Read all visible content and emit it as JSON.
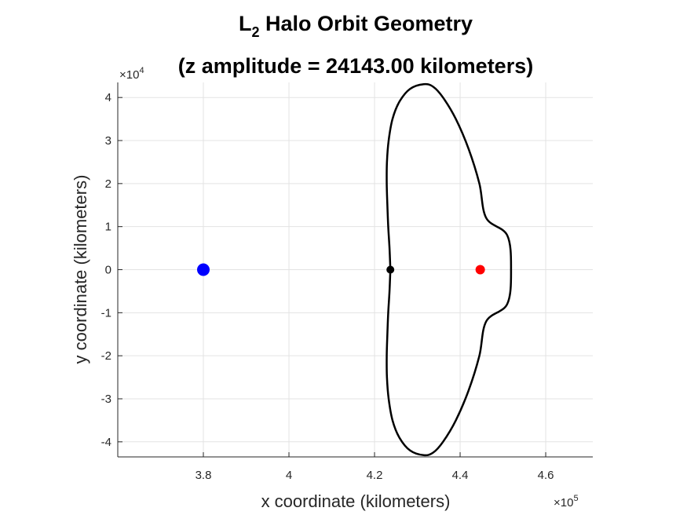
{
  "chart_data": {
    "type": "scatter",
    "title_line1_main": "L",
    "title_line1_sub": "2",
    "title_line1_rest": " Halo Orbit Geometry",
    "title_line2": "(z amplitude = 24143.00 kilometers)",
    "xlabel": "x coordinate (kilometers)",
    "ylabel": "y coordinate (kilometers)",
    "x_exponent_label": "×10",
    "x_exponent_power": "5",
    "y_exponent_label": "×10",
    "y_exponent_power": "4",
    "xlim": [
      3.6,
      4.71
    ],
    "ylim": [
      -4.35,
      4.35
    ],
    "x_ticks": [
      3.8,
      4.0,
      4.2,
      4.4,
      4.6
    ],
    "x_tick_labels": [
      "3.8",
      "4",
      "4.2",
      "4.4",
      "4.6"
    ],
    "y_ticks": [
      -4,
      -3,
      -2,
      -1,
      0,
      1,
      2,
      3,
      4
    ],
    "y_tick_labels": [
      "-4",
      "-3",
      "-2",
      "-1",
      "0",
      "1",
      "2",
      "3",
      "4"
    ],
    "grid": true,
    "points": [
      {
        "x": 3.8,
        "y": 0,
        "color": "#0000ff",
        "size": "large"
      },
      {
        "x": 4.237,
        "y": 0,
        "color": "#000000",
        "size": "small"
      },
      {
        "x": 4.447,
        "y": 0,
        "color": "#ff0000",
        "size": "medium"
      }
    ],
    "orbit_curve": {
      "color": "#000000",
      "points": [
        [
          4.237,
          0
        ],
        [
          4.235,
          0.5
        ],
        [
          4.232,
          1.0
        ],
        [
          4.23,
          1.5
        ],
        [
          4.2285,
          2.0
        ],
        [
          4.229,
          2.5
        ],
        [
          4.233,
          3.0
        ],
        [
          4.242,
          3.5
        ],
        [
          4.258,
          3.9
        ],
        [
          4.283,
          4.2
        ],
        [
          4.315,
          4.31
        ],
        [
          4.337,
          4.25
        ],
        [
          4.36,
          4.0
        ],
        [
          4.39,
          3.5
        ],
        [
          4.42,
          2.8
        ],
        [
          4.445,
          2.0
        ],
        [
          4.461,
          1.2
        ],
        [
          4.51,
          0.8
        ],
        [
          4.519,
          0
        ],
        [
          4.51,
          -0.8
        ],
        [
          4.461,
          -1.2
        ],
        [
          4.445,
          -2.0
        ],
        [
          4.42,
          -2.8
        ],
        [
          4.39,
          -3.5
        ],
        [
          4.36,
          -4.0
        ],
        [
          4.337,
          -4.25
        ],
        [
          4.315,
          -4.31
        ],
        [
          4.283,
          -4.2
        ],
        [
          4.258,
          -3.9
        ],
        [
          4.242,
          -3.5
        ],
        [
          4.233,
          -3.0
        ],
        [
          4.229,
          -2.5
        ],
        [
          4.2285,
          -2.0
        ],
        [
          4.23,
          -1.5
        ],
        [
          4.232,
          -1.0
        ],
        [
          4.235,
          -0.5
        ],
        [
          4.237,
          0
        ]
      ]
    }
  }
}
